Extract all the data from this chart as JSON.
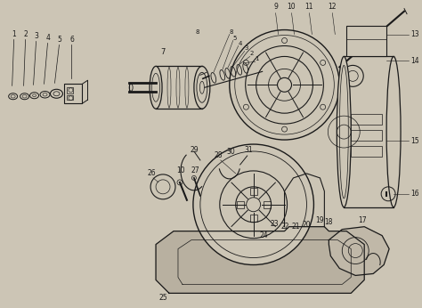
{
  "bg_color": "#ccc5b5",
  "line_color": "#1a1a1a",
  "figsize": [
    4.74,
    3.46
  ],
  "dpi": 100,
  "image_gamma": 0.85
}
